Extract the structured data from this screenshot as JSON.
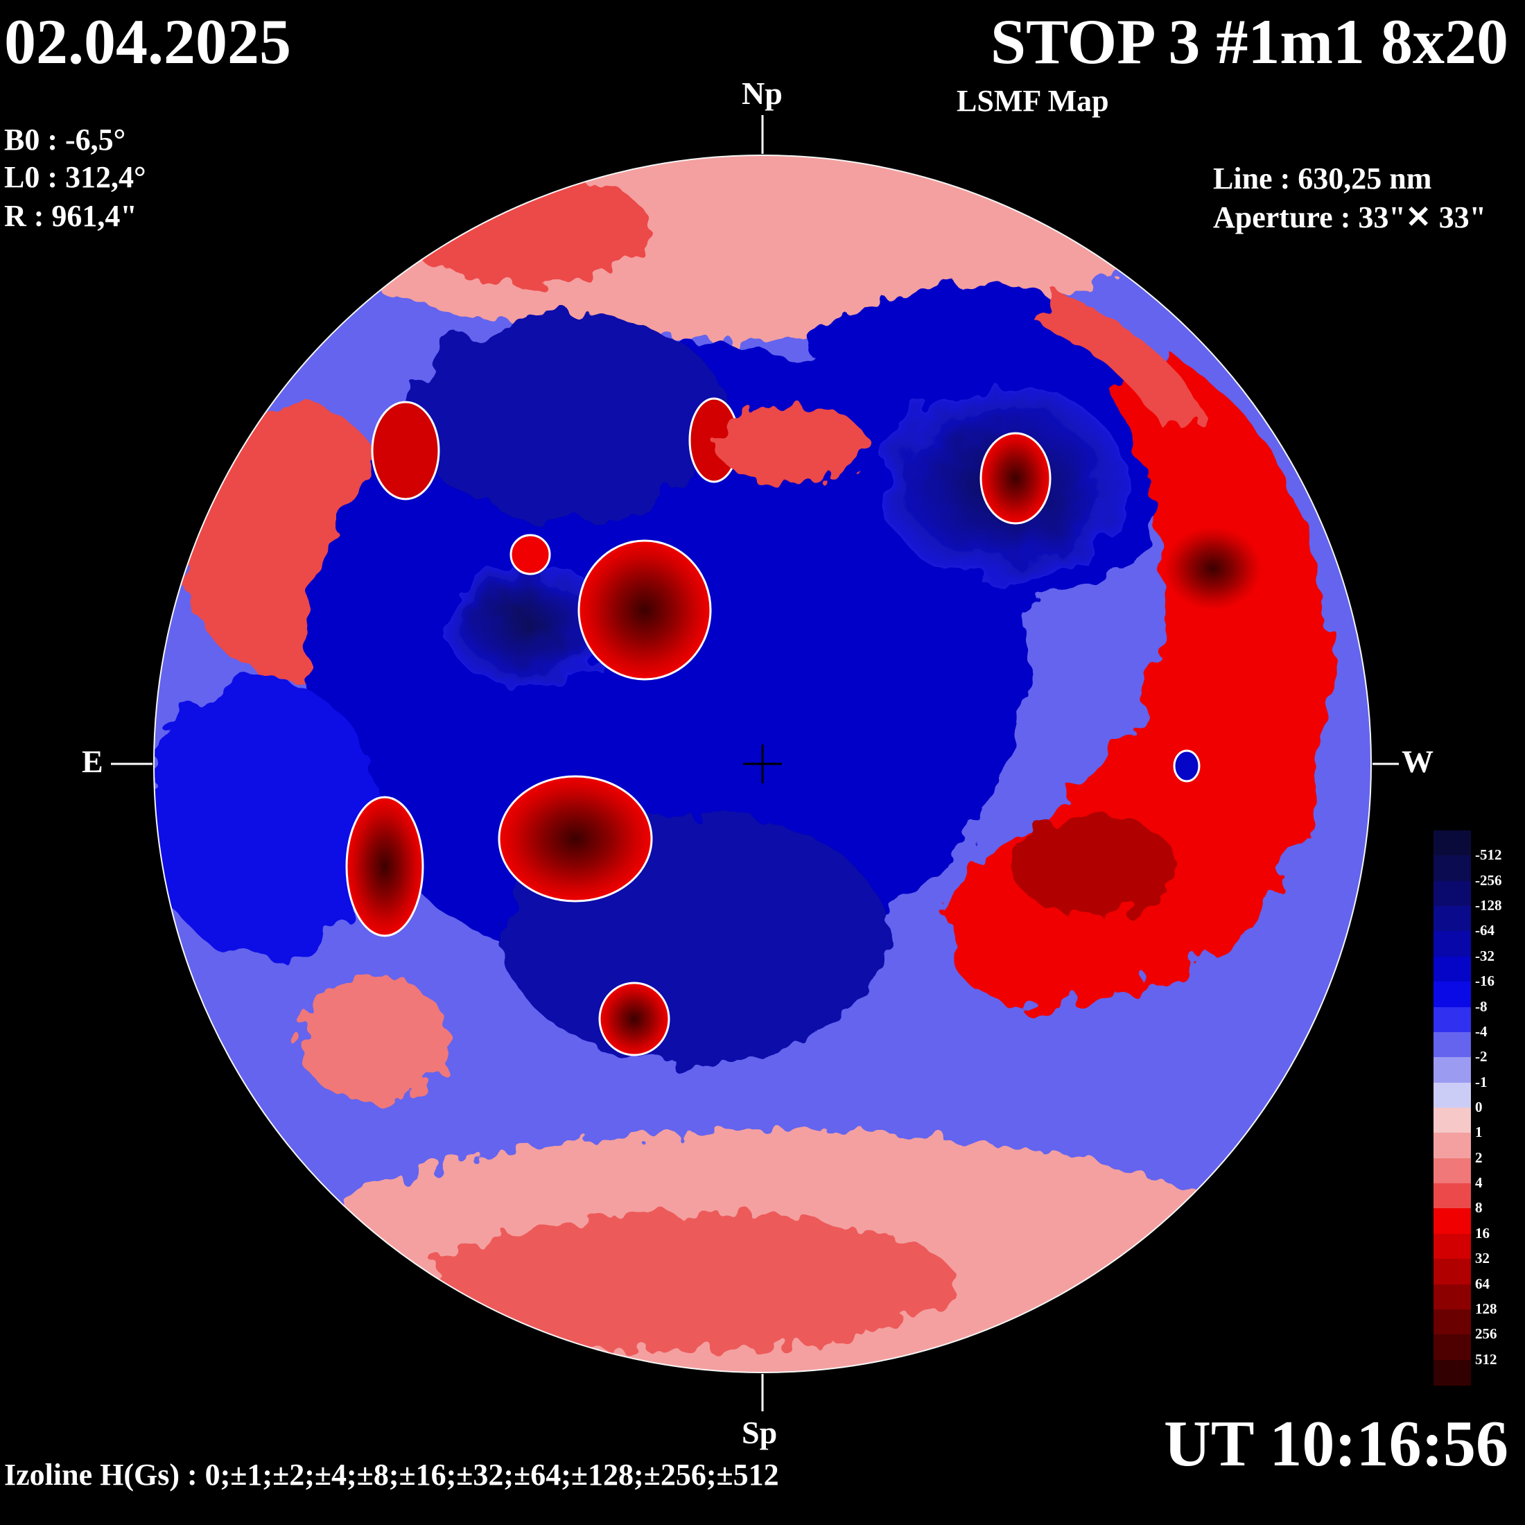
{
  "header": {
    "date": "02.04.2025",
    "title": "STOP 3 #1m1 8x20",
    "subtitle": "LSMF  Map"
  },
  "observation": {
    "b0": "B0 : -6,5°",
    "l0": "L0 : 312,4°",
    "r": "R  : 961,4\"",
    "line": "Line :  630,25 nm",
    "aperture": "Aperture : 33\"✕ 33\""
  },
  "compass": {
    "north": "Np",
    "south": "Sp",
    "east": "E",
    "west": "W"
  },
  "time": "UT 10:16:56",
  "izoline": "Izoline H(Gs) : 0;±1;±2;±4;±8;±16;±32;±64;±128;±256;±512",
  "colorbar": {
    "labels": [
      "-512",
      "-256",
      "-128",
      "-64",
      "-32",
      "-16",
      "-8",
      "-4",
      "-2",
      "-1",
      "0",
      "1",
      "2",
      "4",
      "8",
      "16",
      "32",
      "64",
      "128",
      "256",
      "512"
    ],
    "colors": [
      "#0a0a3a",
      "#0b0b52",
      "#0a0a6e",
      "#0a0a8c",
      "#0707aa",
      "#0505c8",
      "#0a0ae6",
      "#3030f0",
      "#6464ee",
      "#9b9bf2",
      "#cccdf6",
      "#f6c8c8",
      "#f4a0a0",
      "#f07878",
      "#ec4a4a",
      "#f00000",
      "#d20000",
      "#b00000",
      "#8c0000",
      "#6a0000",
      "#4e0000",
      "#320000"
    ]
  },
  "map": {
    "regions": [
      {
        "polarity": "negative",
        "level": 1,
        "shape": "east-limb-belt"
      },
      {
        "polarity": "negative",
        "level": 6,
        "shape": "central-blue-zone"
      },
      {
        "polarity": "negative",
        "level": 7,
        "shape": "north-central-blue"
      },
      {
        "polarity": "negative",
        "level": 7,
        "shape": "northeast-blue"
      },
      {
        "polarity": "negative",
        "level": 8,
        "shape": "core-dark-blue"
      },
      {
        "polarity": "positive",
        "level": 6,
        "shape": "west-red-arc"
      },
      {
        "polarity": "positive",
        "level": 8,
        "shape": "west-red-core"
      },
      {
        "polarity": "positive",
        "level": 3,
        "shape": "south-pink-band"
      },
      {
        "polarity": "positive",
        "level": 3,
        "shape": "north-pink-band"
      },
      {
        "polarity": "positive",
        "level": 9,
        "shape": "spot-left-lower"
      },
      {
        "polarity": "positive",
        "level": 9,
        "shape": "spot-center-lower"
      },
      {
        "polarity": "positive",
        "level": 9,
        "shape": "spot-center-upper"
      },
      {
        "polarity": "positive",
        "level": 9,
        "shape": "spot-ne"
      },
      {
        "polarity": "positive",
        "level": 9,
        "shape": "spot-south"
      },
      {
        "polarity": "positive",
        "level": 7,
        "shape": "spot-nw"
      },
      {
        "polarity": "positive",
        "level": 7,
        "shape": "spot-north"
      }
    ]
  }
}
